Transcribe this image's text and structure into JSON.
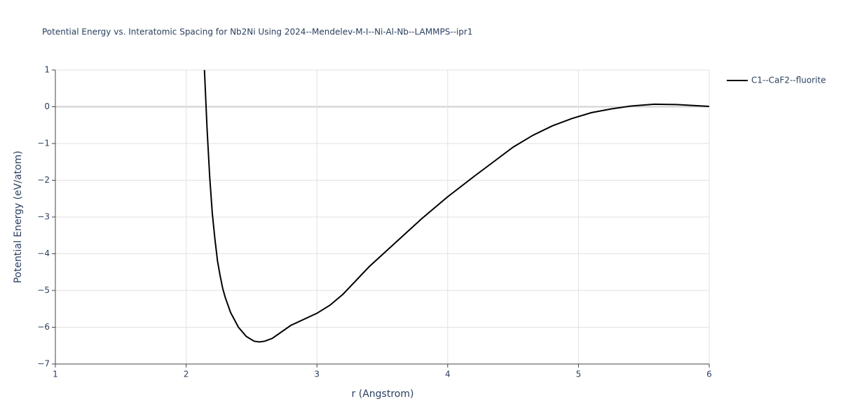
{
  "chart_data": {
    "type": "line",
    "title": "Potential Energy vs. Interatomic Spacing for Nb2Ni Using 2024--Mendelev-M-I--Ni-Al-Nb--LAMMPS--ipr1",
    "x_label": "r (Angstrom)",
    "y_label": "Potential Energy (eV/atom)",
    "x": [
      2.14,
      2.16,
      2.18,
      2.2,
      2.22,
      2.24,
      2.26,
      2.28,
      2.3,
      2.34,
      2.4,
      2.46,
      2.52,
      2.56,
      2.6,
      2.66,
      2.8,
      3.0,
      3.1,
      3.2,
      3.4,
      3.6,
      3.8,
      4.0,
      4.2,
      4.35,
      4.5,
      4.65,
      4.8,
      4.95,
      5.1,
      5.25,
      5.4,
      5.58,
      5.75,
      6.0
    ],
    "series": [
      {
        "name": "C1--CaF2--fluorite",
        "color": "#000000",
        "values": [
          1.0,
          -0.6,
          -1.9,
          -2.9,
          -3.6,
          -4.2,
          -4.6,
          -4.95,
          -5.2,
          -5.6,
          -6.0,
          -6.25,
          -6.38,
          -6.4,
          -6.38,
          -6.3,
          -5.95,
          -5.62,
          -5.4,
          -5.1,
          -4.35,
          -3.7,
          -3.05,
          -2.45,
          -1.9,
          -1.5,
          -1.1,
          -0.78,
          -0.52,
          -0.32,
          -0.16,
          -0.06,
          0.02,
          0.07,
          0.06,
          0.01
        ]
      }
    ],
    "xlim": [
      1,
      6
    ],
    "ylim": [
      -7,
      1
    ],
    "xticks": [
      1,
      2,
      3,
      4,
      5,
      6
    ],
    "yticks": [
      {
        "value": -7,
        "label": "−7"
      },
      {
        "value": -6,
        "label": "−6"
      },
      {
        "value": -5,
        "label": "−5"
      },
      {
        "value": -4,
        "label": "−4"
      },
      {
        "value": -3,
        "label": "−3"
      },
      {
        "value": -2,
        "label": "−2"
      },
      {
        "value": -1,
        "label": "−1"
      },
      0,
      1
    ],
    "grid": true,
    "legend": "right"
  }
}
